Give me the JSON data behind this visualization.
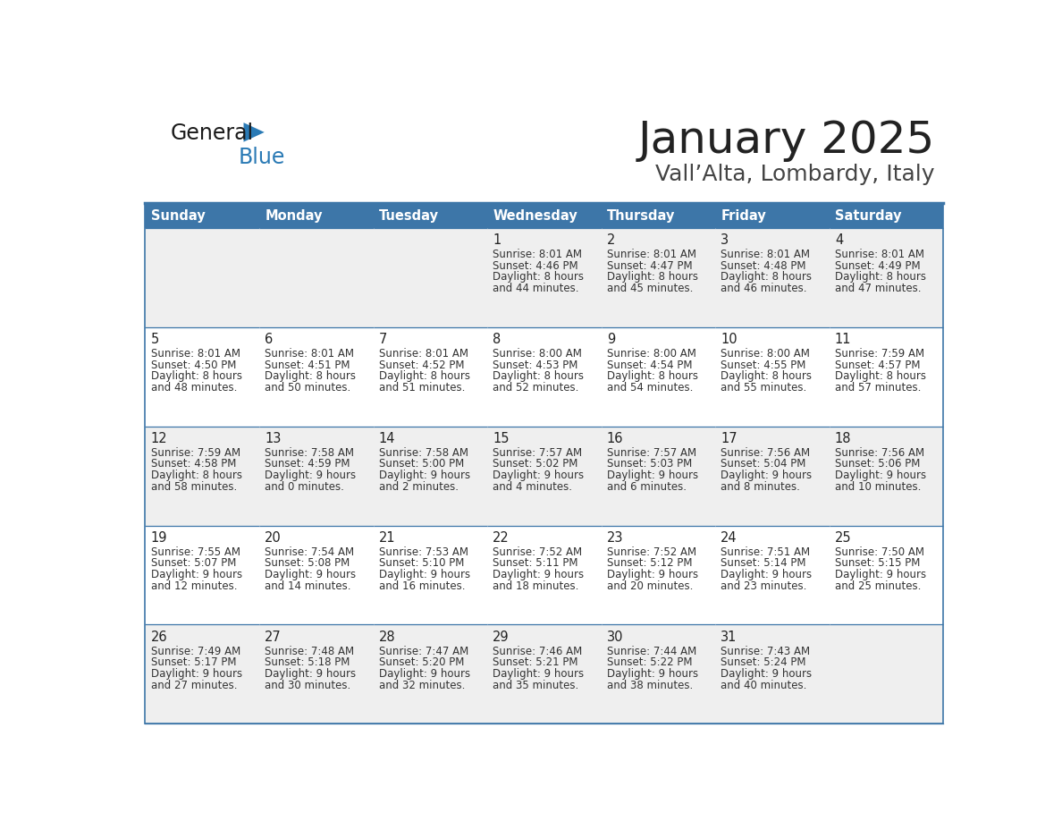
{
  "title": "January 2025",
  "subtitle": "Vall’Alta, Lombardy, Italy",
  "days_of_week": [
    "Sunday",
    "Monday",
    "Tuesday",
    "Wednesday",
    "Thursday",
    "Friday",
    "Saturday"
  ],
  "header_bg": "#3d76a8",
  "header_text": "#ffffff",
  "cell_bg_odd": "#efefef",
  "cell_bg_even": "#ffffff",
  "cell_border": "#3d76a8",
  "day_number_color": "#222222",
  "cell_text_color": "#333333",
  "title_color": "#222222",
  "subtitle_color": "#444444",
  "logo_general_color": "#1a1a1a",
  "logo_blue_color": "#2a7ab5",
  "calendar_data": [
    [
      {
        "day": 0,
        "sunrise": "",
        "sunset": "",
        "daylight": ""
      },
      {
        "day": 0,
        "sunrise": "",
        "sunset": "",
        "daylight": ""
      },
      {
        "day": 0,
        "sunrise": "",
        "sunset": "",
        "daylight": ""
      },
      {
        "day": 1,
        "sunrise": "8:01 AM",
        "sunset": "4:46 PM",
        "daylight": "8 hours and 44 minutes."
      },
      {
        "day": 2,
        "sunrise": "8:01 AM",
        "sunset": "4:47 PM",
        "daylight": "8 hours and 45 minutes."
      },
      {
        "day": 3,
        "sunrise": "8:01 AM",
        "sunset": "4:48 PM",
        "daylight": "8 hours and 46 minutes."
      },
      {
        "day": 4,
        "sunrise": "8:01 AM",
        "sunset": "4:49 PM",
        "daylight": "8 hours and 47 minutes."
      }
    ],
    [
      {
        "day": 5,
        "sunrise": "8:01 AM",
        "sunset": "4:50 PM",
        "daylight": "8 hours and 48 minutes."
      },
      {
        "day": 6,
        "sunrise": "8:01 AM",
        "sunset": "4:51 PM",
        "daylight": "8 hours and 50 minutes."
      },
      {
        "day": 7,
        "sunrise": "8:01 AM",
        "sunset": "4:52 PM",
        "daylight": "8 hours and 51 minutes."
      },
      {
        "day": 8,
        "sunrise": "8:00 AM",
        "sunset": "4:53 PM",
        "daylight": "8 hours and 52 minutes."
      },
      {
        "day": 9,
        "sunrise": "8:00 AM",
        "sunset": "4:54 PM",
        "daylight": "8 hours and 54 minutes."
      },
      {
        "day": 10,
        "sunrise": "8:00 AM",
        "sunset": "4:55 PM",
        "daylight": "8 hours and 55 minutes."
      },
      {
        "day": 11,
        "sunrise": "7:59 AM",
        "sunset": "4:57 PM",
        "daylight": "8 hours and 57 minutes."
      }
    ],
    [
      {
        "day": 12,
        "sunrise": "7:59 AM",
        "sunset": "4:58 PM",
        "daylight": "8 hours and 58 minutes."
      },
      {
        "day": 13,
        "sunrise": "7:58 AM",
        "sunset": "4:59 PM",
        "daylight": "9 hours and 0 minutes."
      },
      {
        "day": 14,
        "sunrise": "7:58 AM",
        "sunset": "5:00 PM",
        "daylight": "9 hours and 2 minutes."
      },
      {
        "day": 15,
        "sunrise": "7:57 AM",
        "sunset": "5:02 PM",
        "daylight": "9 hours and 4 minutes."
      },
      {
        "day": 16,
        "sunrise": "7:57 AM",
        "sunset": "5:03 PM",
        "daylight": "9 hours and 6 minutes."
      },
      {
        "day": 17,
        "sunrise": "7:56 AM",
        "sunset": "5:04 PM",
        "daylight": "9 hours and 8 minutes."
      },
      {
        "day": 18,
        "sunrise": "7:56 AM",
        "sunset": "5:06 PM",
        "daylight": "9 hours and 10 minutes."
      }
    ],
    [
      {
        "day": 19,
        "sunrise": "7:55 AM",
        "sunset": "5:07 PM",
        "daylight": "9 hours and 12 minutes."
      },
      {
        "day": 20,
        "sunrise": "7:54 AM",
        "sunset": "5:08 PM",
        "daylight": "9 hours and 14 minutes."
      },
      {
        "day": 21,
        "sunrise": "7:53 AM",
        "sunset": "5:10 PM",
        "daylight": "9 hours and 16 minutes."
      },
      {
        "day": 22,
        "sunrise": "7:52 AM",
        "sunset": "5:11 PM",
        "daylight": "9 hours and 18 minutes."
      },
      {
        "day": 23,
        "sunrise": "7:52 AM",
        "sunset": "5:12 PM",
        "daylight": "9 hours and 20 minutes."
      },
      {
        "day": 24,
        "sunrise": "7:51 AM",
        "sunset": "5:14 PM",
        "daylight": "9 hours and 23 minutes."
      },
      {
        "day": 25,
        "sunrise": "7:50 AM",
        "sunset": "5:15 PM",
        "daylight": "9 hours and 25 minutes."
      }
    ],
    [
      {
        "day": 26,
        "sunrise": "7:49 AM",
        "sunset": "5:17 PM",
        "daylight": "9 hours and 27 minutes."
      },
      {
        "day": 27,
        "sunrise": "7:48 AM",
        "sunset": "5:18 PM",
        "daylight": "9 hours and 30 minutes."
      },
      {
        "day": 28,
        "sunrise": "7:47 AM",
        "sunset": "5:20 PM",
        "daylight": "9 hours and 32 minutes."
      },
      {
        "day": 29,
        "sunrise": "7:46 AM",
        "sunset": "5:21 PM",
        "daylight": "9 hours and 35 minutes."
      },
      {
        "day": 30,
        "sunrise": "7:44 AM",
        "sunset": "5:22 PM",
        "daylight": "9 hours and 38 minutes."
      },
      {
        "day": 31,
        "sunrise": "7:43 AM",
        "sunset": "5:24 PM",
        "daylight": "9 hours and 40 minutes."
      },
      {
        "day": 0,
        "sunrise": "",
        "sunset": "",
        "daylight": ""
      }
    ]
  ]
}
